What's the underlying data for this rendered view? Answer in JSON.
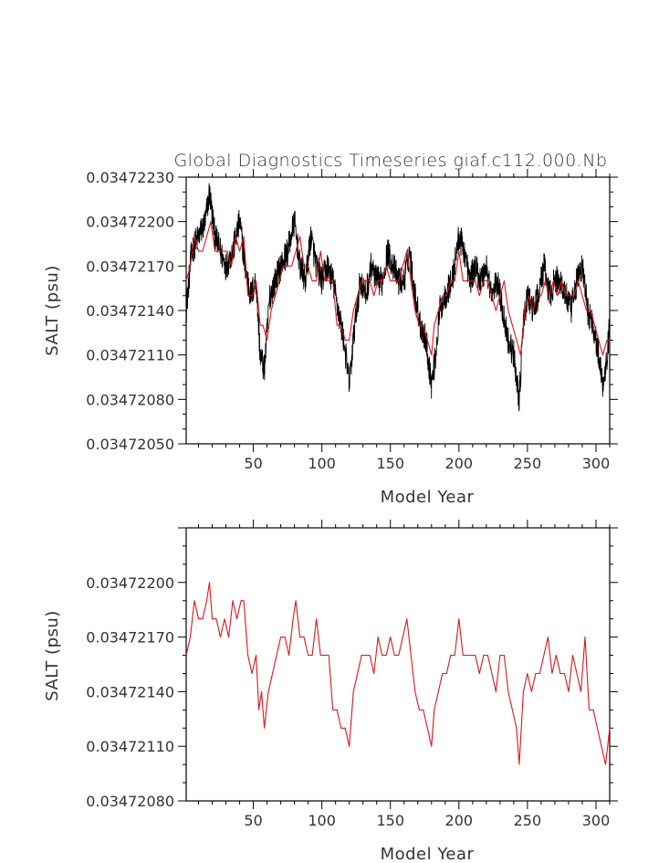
{
  "page_title": "Global Diagnostics Timeseries giaf.c112.000.Nb",
  "colors": {
    "annual_series": "#000000",
    "smoothed_series": "#e0141a",
    "axes": "#000000",
    "text": "#333333"
  },
  "chart_data": [
    {
      "type": "line",
      "title": "Global Diagnostics Timeseries giaf.c112.000.Nb",
      "xlabel": "Model Year",
      "ylabel": "SALT (psu)",
      "xlim": [
        1,
        310
      ],
      "ylim": [
        0.0347205,
        0.0347223
      ],
      "x_ticks": [
        50,
        100,
        150,
        200,
        250,
        300
      ],
      "x_tick_labels": [
        "50",
        "100",
        "150",
        "200",
        "250",
        "300"
      ],
      "y_ticks": [
        0.0347205,
        0.0347208,
        0.0347211,
        0.0347214,
        0.0347217,
        0.034722,
        0.0347223
      ],
      "y_tick_labels": [
        "0.03472050",
        "0.03472080",
        "0.03472110",
        "0.03472140",
        "0.03472170",
        "0.03472200",
        "0.03472230"
      ],
      "grid": false,
      "series": [
        {
          "color": "#000000",
          "style": "high-frequency monthly values",
          "x": [
            1,
            5,
            10,
            15,
            18,
            22,
            26,
            30,
            35,
            40,
            44,
            48,
            52,
            55,
            58,
            62,
            66,
            70,
            75,
            80,
            84,
            88,
            92,
            96,
            100,
            104,
            108,
            112,
            116,
            120,
            124,
            128,
            132,
            136,
            140,
            144,
            148,
            152,
            156,
            160,
            164,
            168,
            172,
            176,
            180,
            183,
            186,
            190,
            195,
            200,
            204,
            208,
            212,
            216,
            220,
            224,
            228,
            232,
            236,
            240,
            244,
            247,
            250,
            254,
            258,
            262,
            266,
            270,
            274,
            278,
            282,
            286,
            290,
            294,
            298,
            302,
            305,
            308,
            310
          ],
          "y": [
            0.0347214,
            0.0347218,
            0.0347219,
            0.034722,
            0.0347222,
            0.0347219,
            0.0347218,
            0.0347217,
            0.0347218,
            0.034722,
            0.0347217,
            0.0347215,
            0.0347216,
            0.0347211,
            0.034721,
            0.0347215,
            0.0347216,
            0.0347217,
            0.0347218,
            0.034722,
            0.0347217,
            0.0347216,
            0.0347219,
            0.0347217,
            0.0347216,
            0.0347217,
            0.0347216,
            0.0347214,
            0.0347212,
            0.0347209,
            0.0347213,
            0.0347216,
            0.0347215,
            0.0347217,
            0.0347216,
            0.0347216,
            0.0347218,
            0.0347217,
            0.0347216,
            0.0347216,
            0.0347218,
            0.0347215,
            0.0347213,
            0.0347212,
            0.0347209,
            0.0347211,
            0.0347214,
            0.0347215,
            0.0347216,
            0.0347219,
            0.0347218,
            0.0347216,
            0.0347217,
            0.0347216,
            0.0347217,
            0.0347215,
            0.0347216,
            0.0347214,
            0.0347212,
            0.0347211,
            0.0347208,
            0.0347213,
            0.0347215,
            0.0347214,
            0.0347215,
            0.0347217,
            0.0347215,
            0.0347216,
            0.0347216,
            0.0347215,
            0.0347214,
            0.0347216,
            0.0347217,
            0.0347214,
            0.0347213,
            0.0347211,
            0.0347209,
            0.0347211,
            0.0347213
          ]
        },
        {
          "color": "#e0141a",
          "style": "annual mean",
          "x": [
            1,
            4,
            7,
            10,
            13,
            16,
            19,
            22,
            25,
            28,
            31,
            34,
            37,
            40,
            43,
            46,
            49,
            52,
            55,
            57,
            60,
            63,
            66,
            69,
            72,
            75,
            78,
            81,
            84,
            87,
            90,
            93,
            96,
            99,
            102,
            105,
            108,
            111,
            114,
            117,
            120,
            123,
            126,
            129,
            132,
            135,
            138,
            141,
            144,
            147,
            150,
            153,
            156,
            159,
            162,
            165,
            168,
            171,
            174,
            177,
            180,
            182,
            185,
            188,
            191,
            194,
            197,
            200,
            203,
            206,
            209,
            212,
            215,
            218,
            221,
            224,
            227,
            230,
            233,
            236,
            239,
            242,
            245,
            248,
            251,
            254,
            257,
            260,
            263,
            266,
            269,
            272,
            275,
            278,
            281,
            284,
            287,
            290,
            293,
            296,
            299,
            302,
            305,
            308,
            310
          ],
          "y": [
            0.0347216,
            0.0347217,
            0.0347219,
            0.0347218,
            0.0347218,
            0.0347219,
            0.034722,
            0.0347218,
            0.0347218,
            0.0347218,
            0.0347218,
            0.0347217,
            0.0347219,
            0.0347218,
            0.0347219,
            0.0347215,
            0.0347215,
            0.0347216,
            0.0347213,
            0.0347213,
            0.0347212,
            0.0347214,
            0.0347215,
            0.0347216,
            0.0347217,
            0.0347217,
            0.0347217,
            0.0347218,
            0.0347219,
            0.0347217,
            0.0347217,
            0.0347216,
            0.0347216,
            0.0347218,
            0.0347216,
            0.0347216,
            0.0347216,
            0.0347213,
            0.0347213,
            0.0347212,
            0.0347212,
            0.0347214,
            0.0347215,
            0.0347216,
            0.0347216,
            0.0347216,
            0.0347215,
            0.0347216,
            0.0347216,
            0.0347217,
            0.0347216,
            0.0347216,
            0.0347216,
            0.0347217,
            0.0347218,
            0.0347216,
            0.0347214,
            0.0347213,
            0.0347213,
            0.0347212,
            0.0347211,
            0.0347213,
            0.0347214,
            0.0347215,
            0.0347215,
            0.0347216,
            0.0347216,
            0.0347218,
            0.0347216,
            0.0347216,
            0.0347216,
            0.0347216,
            0.0347215,
            0.0347216,
            0.0347216,
            0.0347215,
            0.0347214,
            0.0347215,
            0.0347216,
            0.0347214,
            0.0347213,
            0.0347212,
            0.0347211,
            0.0347214,
            0.0347215,
            0.0347214,
            0.0347215,
            0.0347215,
            0.0347216,
            0.0347215,
            0.0347216,
            0.0347215,
            0.0347216,
            0.0347215,
            0.0347215,
            0.0347215,
            0.0347216,
            0.0347215,
            0.0347214,
            0.0347214,
            0.0347213,
            0.0347212,
            0.0347211,
            0.0347212,
            0.0347212
          ]
        }
      ]
    },
    {
      "type": "line",
      "xlabel": "Model Year",
      "ylabel": "SALT (psu)",
      "xlim": [
        1,
        310
      ],
      "ylim": [
        0.0347208,
        0.0347223
      ],
      "x_ticks": [
        50,
        100,
        150,
        200,
        250,
        300
      ],
      "x_tick_labels": [
        "50",
        "100",
        "150",
        "200",
        "250",
        "300"
      ],
      "y_ticks": [
        0.0347208,
        0.0347211,
        0.0347214,
        0.0347217,
        0.034722
      ],
      "y_tick_labels": [
        "0.03472080",
        "0.03472110",
        "0.03472140",
        "0.03472170",
        "0.03472200"
      ],
      "grid": false,
      "series": [
        {
          "color": "#e0141a",
          "style": "annual mean",
          "x": [
            1,
            4,
            7,
            10,
            13,
            16,
            18,
            20,
            23,
            26,
            29,
            32,
            35,
            38,
            41,
            43,
            46,
            49,
            52,
            54,
            56,
            58,
            61,
            64,
            67,
            70,
            73,
            76,
            79,
            81,
            84,
            87,
            90,
            93,
            96,
            99,
            102,
            105,
            108,
            111,
            114,
            117,
            120,
            123,
            126,
            129,
            132,
            135,
            138,
            141,
            144,
            147,
            150,
            153,
            156,
            159,
            162,
            165,
            168,
            171,
            174,
            177,
            180,
            182,
            185,
            188,
            191,
            194,
            197,
            200,
            203,
            206,
            209,
            212,
            215,
            218,
            221,
            224,
            227,
            230,
            233,
            236,
            239,
            242,
            244,
            247,
            250,
            253,
            256,
            259,
            262,
            265,
            268,
            271,
            274,
            277,
            280,
            283,
            286,
            289,
            292,
            295,
            298,
            301,
            304,
            307,
            310
          ],
          "y": [
            0.0347216,
            0.0347217,
            0.0347219,
            0.0347218,
            0.0347218,
            0.0347219,
            0.034722,
            0.0347218,
            0.0347218,
            0.0347217,
            0.0347218,
            0.0347217,
            0.0347219,
            0.0347218,
            0.0347219,
            0.0347219,
            0.0347216,
            0.0347215,
            0.0347216,
            0.0347213,
            0.0347214,
            0.0347212,
            0.0347214,
            0.0347215,
            0.0347216,
            0.0347217,
            0.0347217,
            0.0347216,
            0.0347218,
            0.0347219,
            0.0347217,
            0.0347217,
            0.0347216,
            0.0347216,
            0.0347218,
            0.0347216,
            0.0347216,
            0.0347216,
            0.0347213,
            0.0347213,
            0.0347212,
            0.0347212,
            0.0347211,
            0.0347214,
            0.0347215,
            0.0347216,
            0.0347216,
            0.0347216,
            0.0347215,
            0.0347217,
            0.0347216,
            0.0347216,
            0.0347217,
            0.0347216,
            0.0347216,
            0.0347217,
            0.0347218,
            0.0347216,
            0.0347214,
            0.0347213,
            0.0347213,
            0.0347212,
            0.0347211,
            0.0347213,
            0.0347214,
            0.0347215,
            0.0347215,
            0.0347216,
            0.0347216,
            0.0347218,
            0.0347216,
            0.0347216,
            0.0347216,
            0.0347216,
            0.0347215,
            0.0347216,
            0.0347216,
            0.0347215,
            0.0347214,
            0.0347216,
            0.0347216,
            0.0347214,
            0.0347213,
            0.0347212,
            0.034721,
            0.0347214,
            0.0347215,
            0.0347214,
            0.0347215,
            0.0347215,
            0.0347216,
            0.0347217,
            0.0347215,
            0.0347216,
            0.0347215,
            0.0347215,
            0.0347214,
            0.0347216,
            0.0347215,
            0.0347214,
            0.0347217,
            0.0347213,
            0.0347213,
            0.0347212,
            0.0347211,
            0.034721,
            0.0347212
          ]
        }
      ]
    }
  ]
}
